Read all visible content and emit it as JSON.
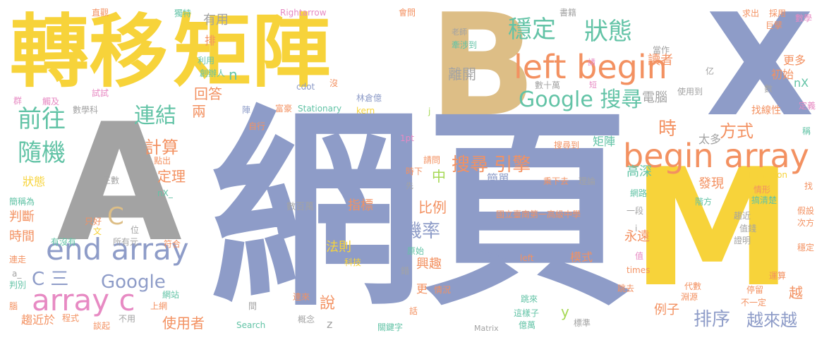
{
  "palette": {
    "yellow": "#F7D33A",
    "tan": "#DDBE86",
    "slate": "#8E9CC8",
    "gray": "#A3A3A3",
    "orange": "#F39161",
    "teal": "#62C3A6",
    "green": "#A6D854",
    "pink": "#E78AC3",
    "blue": "#6B8FCB"
  },
  "words": [
    {
      "text": "轉移"
    },
    {
      "text": "矩陣"
    },
    {
      "text": "B"
    },
    {
      "text": "X"
    },
    {
      "text": "網頁"
    },
    {
      "text": "A"
    },
    {
      "text": "M"
    },
    {
      "text": "left begin"
    },
    {
      "text": "begin array"
    },
    {
      "text": "end array"
    },
    {
      "text": "array c"
    },
    {
      "text": "Google 搜尋"
    },
    {
      "text": "穩定"
    },
    {
      "text": "狀態"
    },
    {
      "text": "前往"
    },
    {
      "text": "隨機"
    },
    {
      "text": "連結"
    },
    {
      "text": "搜尋 引擎"
    },
    {
      "text": "機率"
    },
    {
      "text": "排序"
    },
    {
      "text": "越來越"
    },
    {
      "text": "Google"
    },
    {
      "text": "C 三"
    },
    {
      "text": "C"
    },
    {
      "text": "計算"
    },
    {
      "text": "定理"
    },
    {
      "text": "回答"
    },
    {
      "text": "兩"
    },
    {
      "text": "時"
    },
    {
      "text": "方式"
    },
    {
      "text": "讀者"
    },
    {
      "text": "更多"
    },
    {
      "text": "初始"
    },
    {
      "text": "nX"
    },
    {
      "text": "有用"
    },
    {
      "text": "排"
    },
    {
      "text": "n"
    },
    {
      "text": "離開"
    },
    {
      "text": "電腦"
    },
    {
      "text": "找線性"
    },
    {
      "text": "太多"
    },
    {
      "text": "高深"
    },
    {
      "text": "發現"
    },
    {
      "text": "簡單"
    },
    {
      "text": "中"
    },
    {
      "text": "比例"
    },
    {
      "text": "指標"
    },
    {
      "text": "說"
    },
    {
      "text": "法則"
    },
    {
      "text": "興趣"
    },
    {
      "text": "模式"
    },
    {
      "text": "永遠"
    },
    {
      "text": "例子"
    },
    {
      "text": "越"
    },
    {
      "text": "y"
    },
    {
      "text": "使用者"
    },
    {
      "text": "時間"
    },
    {
      "text": "判斷"
    },
    {
      "text": "狀態"
    },
    {
      "text": "趨近於"
    },
    {
      "text": "更"
    },
    {
      "text": "z"
    },
    {
      "text": "國立臺南第一高級中學"
    },
    {
      "text": "數百萬"
    },
    {
      "text": "Stationary"
    },
    {
      "text": "Search"
    },
    {
      "text": "Matrix"
    },
    {
      "text": "Transition"
    },
    {
      "text": "Rightarrow"
    },
    {
      "text": "cdot"
    },
    {
      "text": "kern"
    },
    {
      "text": "富豪"
    },
    {
      "text": "林倉億"
    },
    {
      "text": "1pt"
    },
    {
      "text": "j"
    },
    {
      "text": "數學"
    },
    {
      "text": "巨擘"
    },
    {
      "text": "求出"
    },
    {
      "text": "採用"
    },
    {
      "text": "書籍"
    },
    {
      "text": "會問"
    },
    {
      "text": "直觀"
    },
    {
      "text": "獨特"
    },
    {
      "text": "老師"
    },
    {
      "text": "牽涉到"
    },
    {
      "text": "當作"
    },
    {
      "text": "數十萬"
    },
    {
      "text": "請"
    },
    {
      "text": "短"
    },
    {
      "text": "使用到"
    },
    {
      "text": "利用"
    },
    {
      "text": "創辦人"
    },
    {
      "text": "沒"
    },
    {
      "text": "群"
    },
    {
      "text": "觸及"
    },
    {
      "text": "試試"
    },
    {
      "text": "數學科"
    },
    {
      "text": "陣"
    },
    {
      "text": "自行"
    },
    {
      "text": "定義"
    },
    {
      "text": "稱"
    },
    {
      "text": "找"
    },
    {
      "text": "正數"
    },
    {
      "text": "點出"
    },
    {
      "text": "nX_"
    },
    {
      "text": "請問"
    },
    {
      "text": "時下"
    },
    {
      "text": "先"
    },
    {
      "text": "搜尋到"
    },
    {
      "text": "矩陣"
    },
    {
      "text": "乘下去"
    },
    {
      "text": "理論"
    },
    {
      "text": "網路"
    },
    {
      "text": "情形"
    },
    {
      "text": "搞清楚"
    },
    {
      "text": "階方"
    },
    {
      "text": "一段"
    },
    {
      "text": "趨近"
    },
    {
      "text": "值錢"
    },
    {
      "text": "證明"
    },
    {
      "text": "假設"
    },
    {
      "text": "次方"
    },
    {
      "text": "穩定"
    },
    {
      "text": "只好"
    },
    {
      "text": "位"
    },
    {
      "text": "文"
    },
    {
      "text": "所有元"
    },
    {
      "text": "有沒有"
    },
    {
      "text": "符合"
    },
    {
      "text": "原始"
    },
    {
      "text": "發展出"
    },
    {
      "text": "left"
    },
    {
      "text": "值"
    },
    {
      "text": "times"
    },
    {
      "text": "科技"
    },
    {
      "text": "錯"
    },
    {
      "text": "簡稱為"
    },
    {
      "text": "連走"
    },
    {
      "text": "a_"
    },
    {
      "text": "判別"
    },
    {
      "text": "網站"
    },
    {
      "text": "上網"
    },
    {
      "text": "程式"
    },
    {
      "text": "談起"
    },
    {
      "text": "不用"
    },
    {
      "text": "間"
    },
    {
      "text": "概念"
    },
    {
      "text": "連來"
    },
    {
      "text": "情況"
    },
    {
      "text": "話"
    },
    {
      "text": "關鍵字"
    },
    {
      "text": "跳來"
    },
    {
      "text": "這樣子"
    },
    {
      "text": "億萬"
    },
    {
      "text": "標準"
    },
    {
      "text": "跳去"
    },
    {
      "text": "代數"
    },
    {
      "text": "淵源"
    },
    {
      "text": "停留"
    },
    {
      "text": "不一定"
    },
    {
      "text": "運算"
    },
    {
      "text": "腦"
    },
    {
      "text": "數"
    },
    {
      "text": "亿"
    },
    {
      "text": "i"
    }
  ]
}
